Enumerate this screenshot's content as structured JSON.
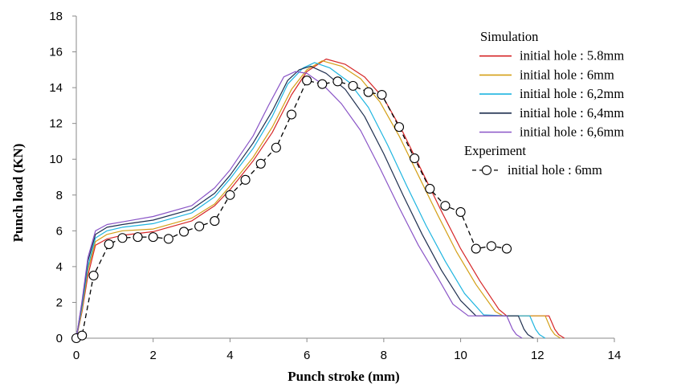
{
  "chart_data": {
    "type": "line",
    "title": "",
    "xlabel": "Punch stroke (mm)",
    "ylabel": "Punch load (KN)",
    "xlim": [
      0,
      14
    ],
    "ylim": [
      0,
      18
    ],
    "x_ticks": [
      "0",
      "2",
      "4",
      "6",
      "8",
      "10",
      "12",
      "14"
    ],
    "y_ticks": [
      "0",
      "2",
      "4",
      "6",
      "8",
      "10",
      "12",
      "14",
      "16",
      "18"
    ],
    "grid": false,
    "legend_position": "right",
    "legend_groups": [
      {
        "title": "Simulation",
        "entries": [
          {
            "name": "initial hole : 5.8mm",
            "color": "#d62728",
            "style": "solid"
          },
          {
            "name": "initial hole : 6mm",
            "color": "#d4a017",
            "style": "solid"
          },
          {
            "name": "initial hole : 6,2mm",
            "color": "#1fb5e0",
            "style": "solid"
          },
          {
            "name": "initial hole : 6,4mm",
            "color": "#1f2f4f",
            "style": "solid"
          },
          {
            "name": "initial hole : 6,6mm",
            "color": "#8a55c7",
            "style": "solid"
          }
        ]
      },
      {
        "title": "Experiment",
        "entries": [
          {
            "name": "initial hole : 6mm",
            "color": "#000000",
            "style": "dashed-circle"
          }
        ]
      }
    ],
    "series": [
      {
        "name": "initial hole : 5.8mm",
        "color": "#d62728",
        "style": "solid",
        "points": [
          [
            0,
            0
          ],
          [
            0.15,
            1.5
          ],
          [
            0.3,
            3.5
          ],
          [
            0.5,
            5.2
          ],
          [
            0.8,
            5.55
          ],
          [
            1.2,
            5.75
          ],
          [
            2.0,
            5.95
          ],
          [
            3.0,
            6.55
          ],
          [
            3.6,
            7.4
          ],
          [
            4.0,
            8.3
          ],
          [
            4.6,
            9.9
          ],
          [
            5.1,
            11.5
          ],
          [
            5.6,
            13.6
          ],
          [
            6.0,
            14.9
          ],
          [
            6.5,
            15.6
          ],
          [
            7.0,
            15.3
          ],
          [
            7.5,
            14.6
          ],
          [
            8.0,
            13.4
          ],
          [
            8.5,
            11.5
          ],
          [
            9.0,
            9.3
          ],
          [
            9.5,
            7.1
          ],
          [
            10.0,
            5.0
          ],
          [
            10.5,
            3.2
          ],
          [
            11.0,
            1.6
          ],
          [
            11.2,
            1.25
          ],
          [
            12.0,
            1.25
          ],
          [
            12.3,
            1.25
          ],
          [
            12.45,
            0.5
          ],
          [
            12.55,
            0.2
          ],
          [
            12.7,
            0.0
          ]
        ]
      },
      {
        "name": "initial hole : 6mm",
        "color": "#d4a017",
        "style": "solid",
        "points": [
          [
            0,
            0
          ],
          [
            0.15,
            1.6
          ],
          [
            0.3,
            3.8
          ],
          [
            0.5,
            5.4
          ],
          [
            0.8,
            5.8
          ],
          [
            1.2,
            6.0
          ],
          [
            2.0,
            6.1
          ],
          [
            3.0,
            6.7
          ],
          [
            3.6,
            7.5
          ],
          [
            4.0,
            8.5
          ],
          [
            4.6,
            10.1
          ],
          [
            5.1,
            11.8
          ],
          [
            5.6,
            13.9
          ],
          [
            6.0,
            15.0
          ],
          [
            6.4,
            15.5
          ],
          [
            6.9,
            15.2
          ],
          [
            7.4,
            14.5
          ],
          [
            7.9,
            13.2
          ],
          [
            8.4,
            11.3
          ],
          [
            8.9,
            9.1
          ],
          [
            9.4,
            6.9
          ],
          [
            9.9,
            4.8
          ],
          [
            10.4,
            3.0
          ],
          [
            10.9,
            1.5
          ],
          [
            11.1,
            1.25
          ],
          [
            12.0,
            1.25
          ],
          [
            12.2,
            1.25
          ],
          [
            12.35,
            0.5
          ],
          [
            12.45,
            0.2
          ],
          [
            12.6,
            0.0
          ]
        ]
      },
      {
        "name": "initial hole : 6,2mm",
        "color": "#1fb5e0",
        "style": "solid",
        "points": [
          [
            0,
            0
          ],
          [
            0.15,
            1.8
          ],
          [
            0.3,
            4.0
          ],
          [
            0.5,
            5.6
          ],
          [
            0.8,
            6.0
          ],
          [
            1.2,
            6.2
          ],
          [
            2.0,
            6.4
          ],
          [
            3.0,
            7.0
          ],
          [
            3.6,
            7.9
          ],
          [
            4.0,
            8.9
          ],
          [
            4.6,
            10.6
          ],
          [
            5.1,
            12.4
          ],
          [
            5.5,
            14.2
          ],
          [
            5.9,
            15.1
          ],
          [
            6.2,
            15.4
          ],
          [
            6.6,
            15.1
          ],
          [
            7.1,
            14.3
          ],
          [
            7.6,
            12.9
          ],
          [
            8.1,
            10.8
          ],
          [
            8.6,
            8.5
          ],
          [
            9.1,
            6.3
          ],
          [
            9.6,
            4.3
          ],
          [
            10.1,
            2.5
          ],
          [
            10.6,
            1.3
          ],
          [
            11.2,
            1.25
          ],
          [
            11.8,
            1.25
          ],
          [
            11.95,
            0.5
          ],
          [
            12.05,
            0.2
          ],
          [
            12.2,
            0.0
          ]
        ]
      },
      {
        "name": "initial hole : 6,4mm",
        "color": "#1f2f4f",
        "style": "solid",
        "points": [
          [
            0,
            0
          ],
          [
            0.15,
            2.0
          ],
          [
            0.3,
            4.3
          ],
          [
            0.5,
            5.8
          ],
          [
            0.8,
            6.2
          ],
          [
            1.2,
            6.35
          ],
          [
            2.0,
            6.6
          ],
          [
            3.0,
            7.2
          ],
          [
            3.6,
            8.1
          ],
          [
            4.0,
            9.1
          ],
          [
            4.6,
            10.9
          ],
          [
            5.1,
            12.7
          ],
          [
            5.5,
            14.4
          ],
          [
            5.8,
            15.0
          ],
          [
            6.1,
            15.2
          ],
          [
            6.5,
            14.8
          ],
          [
            7.0,
            13.9
          ],
          [
            7.5,
            12.4
          ],
          [
            8.0,
            10.3
          ],
          [
            8.5,
            8.0
          ],
          [
            9.0,
            5.8
          ],
          [
            9.5,
            3.8
          ],
          [
            10.0,
            2.1
          ],
          [
            10.4,
            1.25
          ],
          [
            11.0,
            1.25
          ],
          [
            11.5,
            1.25
          ],
          [
            11.65,
            0.5
          ],
          [
            11.75,
            0.2
          ],
          [
            11.9,
            0.0
          ]
        ]
      },
      {
        "name": "initial hole : 6,6mm",
        "color": "#8a55c7",
        "style": "solid",
        "points": [
          [
            0,
            0
          ],
          [
            0.15,
            2.1
          ],
          [
            0.3,
            4.5
          ],
          [
            0.5,
            6.0
          ],
          [
            0.8,
            6.35
          ],
          [
            1.2,
            6.5
          ],
          [
            2.0,
            6.8
          ],
          [
            3.0,
            7.4
          ],
          [
            3.6,
            8.4
          ],
          [
            4.0,
            9.4
          ],
          [
            4.6,
            11.3
          ],
          [
            5.0,
            13.0
          ],
          [
            5.4,
            14.6
          ],
          [
            5.7,
            14.9
          ],
          [
            6.0,
            14.8
          ],
          [
            6.4,
            14.2
          ],
          [
            6.9,
            13.1
          ],
          [
            7.4,
            11.6
          ],
          [
            7.9,
            9.5
          ],
          [
            8.4,
            7.3
          ],
          [
            8.9,
            5.2
          ],
          [
            9.4,
            3.4
          ],
          [
            9.8,
            1.9
          ],
          [
            10.2,
            1.25
          ],
          [
            10.8,
            1.25
          ],
          [
            11.2,
            1.25
          ],
          [
            11.35,
            0.5
          ],
          [
            11.45,
            0.2
          ],
          [
            11.6,
            0.0
          ]
        ]
      },
      {
        "name": "initial hole : 6mm",
        "color": "#000000",
        "style": "dashed-circle",
        "points": [
          [
            0.0,
            0.0
          ],
          [
            0.15,
            0.15
          ],
          [
            0.45,
            3.5
          ],
          [
            0.85,
            5.25
          ],
          [
            1.2,
            5.6
          ],
          [
            1.6,
            5.65
          ],
          [
            2.0,
            5.65
          ],
          [
            2.4,
            5.55
          ],
          [
            2.8,
            5.95
          ],
          [
            3.2,
            6.25
          ],
          [
            3.6,
            6.55
          ],
          [
            4.0,
            8.0
          ],
          [
            4.4,
            8.85
          ],
          [
            4.8,
            9.75
          ],
          [
            5.2,
            10.65
          ],
          [
            5.6,
            12.5
          ],
          [
            6.0,
            14.4
          ],
          [
            6.4,
            14.2
          ],
          [
            6.8,
            14.35
          ],
          [
            7.2,
            14.1
          ],
          [
            7.6,
            13.75
          ],
          [
            7.95,
            13.6
          ],
          [
            8.4,
            11.8
          ],
          [
            8.8,
            10.05
          ],
          [
            9.2,
            8.35
          ],
          [
            9.6,
            7.4
          ],
          [
            10.0,
            7.05
          ],
          [
            10.4,
            5.0
          ],
          [
            10.8,
            5.15
          ],
          [
            11.2,
            5.0
          ]
        ]
      }
    ]
  }
}
